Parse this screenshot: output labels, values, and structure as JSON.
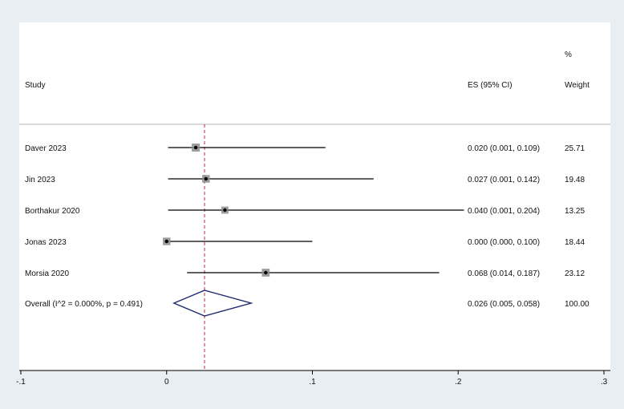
{
  "chart_data": {
    "type": "forest",
    "headers": {
      "study": "Study",
      "es": "ES (95% CI)",
      "weight_top": "%",
      "weight": "Weight"
    },
    "studies": [
      {
        "name": "Daver 2023",
        "es": 0.02,
        "lo": 0.001,
        "hi": 0.109,
        "es_text": "0.020 (0.001, 0.109)",
        "weight": "25.71",
        "weight_value": 25.71
      },
      {
        "name": "Jin 2023",
        "es": 0.027,
        "lo": 0.001,
        "hi": 0.142,
        "es_text": "0.027 (0.001, 0.142)",
        "weight": "19.48",
        "weight_value": 19.48
      },
      {
        "name": "Borthakur 2020",
        "es": 0.04,
        "lo": 0.001,
        "hi": 0.204,
        "es_text": "0.040 (0.001, 0.204)",
        "weight": "13.25",
        "weight_value": 13.25
      },
      {
        "name": "Jonas 2023",
        "es": 0.0,
        "lo": 0.0,
        "hi": 0.1,
        "es_text": "0.000 (0.000, 0.100)",
        "weight": "18.44",
        "weight_value": 18.44
      },
      {
        "name": "Morsia 2020",
        "es": 0.068,
        "lo": 0.014,
        "hi": 0.187,
        "es_text": "0.068 (0.014, 0.187)",
        "weight": "23.12",
        "weight_value": 23.12
      }
    ],
    "overall": {
      "name": "Overall  (I^2 = 0.000%, p = 0.491)",
      "es": 0.026,
      "lo": 0.005,
      "hi": 0.058,
      "es_text": "0.026 (0.005, 0.058)",
      "weight": "100.00"
    },
    "xlim": [
      -0.1,
      0.3
    ],
    "xticks": [
      -0.1,
      0,
      0.1,
      0.2,
      0.3
    ],
    "xtick_labels": [
      "-.1",
      "0",
      ".1",
      ".2",
      ".3"
    ],
    "reference_line": 0.026,
    "colors": {
      "diamond": "#1f2a6e",
      "reference": "#b03040",
      "ci": "#000000",
      "box": "#8c8c8c"
    }
  }
}
